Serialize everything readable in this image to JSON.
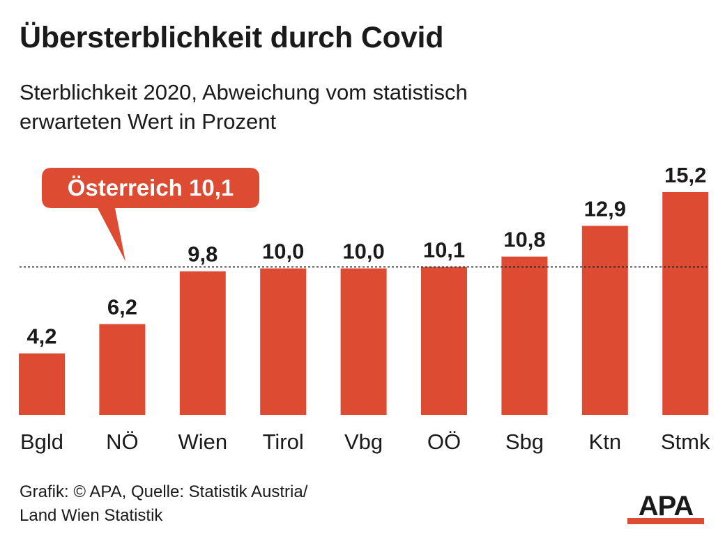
{
  "title": "Übersterblichkeit durch Covid",
  "subtitle_line1": "Sterblichkeit 2020, Abweichung vom statistisch",
  "subtitle_line2": "erwarteten Wert in Prozent",
  "source_line1": "Grafik: © APA, Quelle: Statistik Austria/",
  "source_line2": "Land Wien Statistik",
  "logo_text": "APA",
  "colors": {
    "bar": "#dd4b33",
    "text": "#1a1a1a",
    "reference_line": "#1a1a1a"
  },
  "chart_data": {
    "type": "bar",
    "categories": [
      "Bgld",
      "NÖ",
      "Wien",
      "Tirol",
      "Vbg",
      "OÖ",
      "Sbg",
      "Ktn",
      "Stmk"
    ],
    "values": [
      4.2,
      6.2,
      9.8,
      10.0,
      10.0,
      10.1,
      10.8,
      12.9,
      15.2
    ],
    "value_labels": [
      "4,2",
      "6,2",
      "9,8",
      "10,0",
      "10,0",
      "10,1",
      "10,8",
      "12,9",
      "15,2"
    ],
    "reference_line": {
      "value": 10.1,
      "label": "Österreich 10,1",
      "style": "dotted"
    },
    "ylim": [
      0,
      15.2
    ],
    "grid": false,
    "legend": "none"
  }
}
